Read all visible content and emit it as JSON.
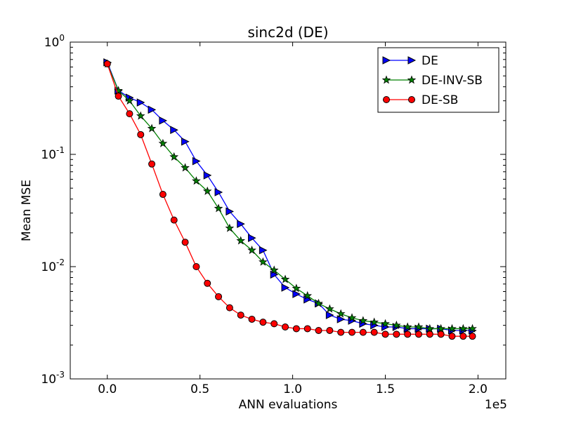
{
  "chart_data": {
    "type": "line",
    "title": "sinc2d (DE)",
    "xlabel": "ANN evaluations",
    "ylabel": "Mean MSE",
    "x_scale_note": "1e5",
    "xlim": [
      -0.2,
      2.15
    ],
    "ylim": [
      0.001,
      1
    ],
    "yscale": "log",
    "x_ticks": [
      0.0,
      0.5,
      1.0,
      1.5,
      2.0
    ],
    "x_tick_labels": [
      "0.0",
      "0.5",
      "1.0",
      "1.5",
      "2.0"
    ],
    "y_ticks": [
      0.001,
      0.01,
      0.1,
      1
    ],
    "y_tick_bases": [
      "10",
      "10",
      "10",
      "10"
    ],
    "y_tick_exponents": [
      "-3",
      "-2",
      "-1",
      "0"
    ],
    "legend_position": "top-right",
    "x": [
      0.0,
      0.06,
      0.12,
      0.18,
      0.24,
      0.3,
      0.36,
      0.42,
      0.48,
      0.54,
      0.6,
      0.66,
      0.72,
      0.78,
      0.84,
      0.9,
      0.96,
      1.02,
      1.08,
      1.14,
      1.2,
      1.26,
      1.32,
      1.38,
      1.44,
      1.5,
      1.56,
      1.62,
      1.68,
      1.74,
      1.8,
      1.86,
      1.92,
      1.97
    ],
    "series": [
      {
        "name": "DE",
        "color": "#0000ff",
        "marker": "triangle-right",
        "values": [
          0.66,
          0.37,
          0.32,
          0.29,
          0.25,
          0.2,
          0.165,
          0.13,
          0.087,
          0.065,
          0.046,
          0.031,
          0.024,
          0.018,
          0.014,
          0.0085,
          0.0065,
          0.0057,
          0.0051,
          0.0047,
          0.0037,
          0.0034,
          0.0033,
          0.0031,
          0.003,
          0.0029,
          0.0029,
          0.0028,
          0.0028,
          0.0028,
          0.0028,
          0.0027,
          0.0027,
          0.0027
        ]
      },
      {
        "name": "DE-INV-SB",
        "color": "#008000",
        "marker": "star",
        "values": [
          0.64,
          0.37,
          0.3,
          0.22,
          0.17,
          0.125,
          0.095,
          0.076,
          0.058,
          0.047,
          0.033,
          0.022,
          0.017,
          0.014,
          0.011,
          0.0093,
          0.0077,
          0.0064,
          0.0055,
          0.0047,
          0.0042,
          0.0038,
          0.0035,
          0.0033,
          0.0032,
          0.0031,
          0.003,
          0.0029,
          0.0029,
          0.0028,
          0.0028,
          0.0028,
          0.0028,
          0.0028
        ]
      },
      {
        "name": "DE-SB",
        "color": "#ff0000",
        "marker": "circle",
        "values": [
          0.64,
          0.33,
          0.23,
          0.15,
          0.082,
          0.044,
          0.026,
          0.0165,
          0.01,
          0.0071,
          0.0054,
          0.0043,
          0.0037,
          0.0034,
          0.0032,
          0.0031,
          0.0029,
          0.0028,
          0.0028,
          0.0027,
          0.0027,
          0.0026,
          0.0026,
          0.0026,
          0.0026,
          0.0025,
          0.0025,
          0.0025,
          0.0025,
          0.0025,
          0.0025,
          0.0024,
          0.0024,
          0.0024
        ]
      }
    ]
  }
}
